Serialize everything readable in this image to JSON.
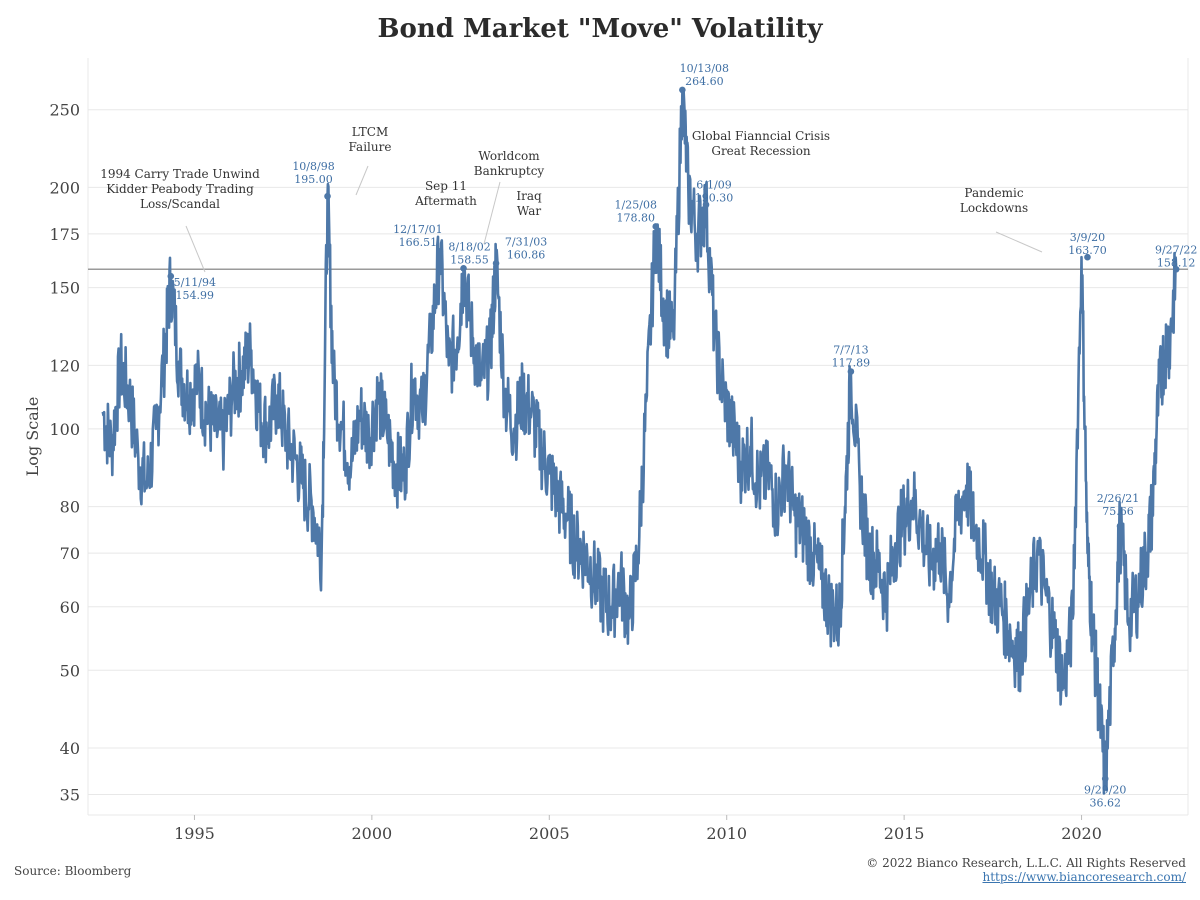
{
  "header": {
    "title": "Bond Market \"Move\" Volatility"
  },
  "footer": {
    "source": "Source: Bloomberg",
    "copyright": "© 2022 Bianco Research, L.L.C. All Rights Reserved",
    "website": "https://www.biancoresearch.com/"
  },
  "colors": {
    "series": "#4e78a8",
    "reference_line": "#9a9a9a",
    "grid": "#e8e8e8"
  },
  "chart_data": {
    "type": "line",
    "title": "Bond Market \"Move\" Volatility",
    "ylabel": "Log Scale",
    "xlabel": "",
    "y_scale": "log",
    "ylim": [
      33,
      290
    ],
    "xlim": [
      "1992-01",
      "2023-01"
    ],
    "y_ticks": [
      35,
      40,
      50,
      60,
      70,
      80,
      100,
      120,
      150,
      175,
      200,
      250
    ],
    "x_ticks": [
      "1995",
      "2000",
      "2005",
      "2010",
      "2015",
      "2020"
    ],
    "grid": true,
    "reference_line": {
      "y": 158.12
    },
    "series": [
      {
        "x": [
          "1992-06",
          "1992-09",
          "1992-12",
          "1993-03",
          "1993-06",
          "1993-09",
          "1993-12",
          "1994-03",
          "1994-05",
          "1994-08",
          "1994-11",
          "1995-02",
          "1995-05",
          "1995-08",
          "1995-11",
          "1996-02",
          "1996-05",
          "1996-08",
          "1996-11",
          "1997-02",
          "1997-05",
          "1997-08",
          "1997-11",
          "1998-02",
          "1998-05",
          "1998-08",
          "1998-10",
          "1998-12",
          "1999-03",
          "1999-06",
          "1999-09",
          "1999-12",
          "2000-03",
          "2000-06",
          "2000-09",
          "2000-12",
          "2001-03",
          "2001-06",
          "2001-09",
          "2001-12",
          "2002-03",
          "2002-06",
          "2002-08",
          "2002-11",
          "2003-02",
          "2003-05",
          "2003-07",
          "2003-10",
          "2004-01",
          "2004-04",
          "2004-07",
          "2004-10",
          "2005-01",
          "2005-04",
          "2005-07",
          "2005-10",
          "2006-01",
          "2006-04",
          "2006-07",
          "2006-10",
          "2007-01",
          "2007-04",
          "2007-07",
          "2007-10",
          "2008-01",
          "2008-04",
          "2008-07",
          "2008-10",
          "2008-12",
          "2009-03",
          "2009-06",
          "2009-09",
          "2009-12",
          "2010-03",
          "2010-06",
          "2010-09",
          "2010-12",
          "2011-03",
          "2011-06",
          "2011-09",
          "2011-12",
          "2012-03",
          "2012-06",
          "2012-09",
          "2012-12",
          "2013-03",
          "2013-05",
          "2013-07",
          "2013-10",
          "2014-01",
          "2014-04",
          "2014-07",
          "2014-10",
          "2015-01",
          "2015-04",
          "2015-07",
          "2015-10",
          "2016-01",
          "2016-04",
          "2016-07",
          "2016-10",
          "2017-01",
          "2017-04",
          "2017-07",
          "2017-10",
          "2018-01",
          "2018-04",
          "2018-07",
          "2018-10",
          "2019-01",
          "2019-04",
          "2019-07",
          "2019-10",
          "2020-01",
          "2020-03",
          "2020-05",
          "2020-07",
          "2020-09",
          "2020-12",
          "2021-02",
          "2021-05",
          "2021-08",
          "2021-11",
          "2022-01",
          "2022-03",
          "2022-05",
          "2022-07",
          "2022-09"
        ],
        "values": [
          105,
          95,
          120,
          110,
          92,
          85,
          100,
          125,
          155,
          118,
          110,
          115,
          105,
          100,
          98,
          112,
          118,
          125,
          105,
          100,
          110,
          98,
          92,
          85,
          80,
          70,
          195,
          115,
          100,
          90,
          105,
          98,
          110,
          100,
          90,
          88,
          115,
          105,
          130,
          166.51,
          120,
          130,
          158.55,
          130,
          115,
          125,
          160.86,
          110,
          100,
          110,
          105,
          95,
          88,
          82,
          78,
          72,
          70,
          66,
          62,
          60,
          65,
          58,
          70,
          110,
          178.8,
          140,
          130,
          264.6,
          200,
          175,
          190.3,
          130,
          110,
          100,
          90,
          95,
          85,
          88,
          80,
          90,
          78,
          75,
          70,
          65,
          60,
          58,
          80,
          117.89,
          85,
          70,
          68,
          62,
          72,
          78,
          82,
          75,
          68,
          72,
          62,
          78,
          85,
          75,
          70,
          62,
          60,
          55,
          52,
          60,
          70,
          62,
          55,
          48,
          58,
          163.7,
          70,
          55,
          45,
          36.62,
          55,
          75.66,
          58,
          62,
          70,
          80,
          110,
          125,
          130,
          158.12
        ]
      }
    ],
    "annotations": [
      {
        "x": "1994-05",
        "y": 154.99,
        "date": "5/11/94",
        "value": "154.99",
        "event": [
          "1994 Carry Trade Unwind",
          "Kidder Peabody Trading",
          "Loss/Scandal"
        ]
      },
      {
        "x": "1998-10",
        "y": 195.0,
        "date": "10/8/98",
        "value": "195.00",
        "event": [
          "LTCM",
          "Failure"
        ]
      },
      {
        "x": "2001-12",
        "y": 166.51,
        "date": "12/17/01",
        "value": "166.51",
        "event": [
          "Sep 11",
          "Aftermath"
        ]
      },
      {
        "x": "2002-08",
        "y": 158.55,
        "date": "8/18/02",
        "value": "158.55",
        "event": [
          "Worldcom",
          "Bankruptcy"
        ]
      },
      {
        "x": "2003-07",
        "y": 160.86,
        "date": "7/31/03",
        "value": "160.86",
        "event": [
          "Iraq",
          "War"
        ]
      },
      {
        "x": "2008-01",
        "y": 178.8,
        "date": "1/25/08",
        "value": "178.80",
        "event": []
      },
      {
        "x": "2008-10",
        "y": 264.6,
        "date": "10/13/08",
        "value": "264.60",
        "event": [
          "Global Fianncial Crisis",
          "Great Recession"
        ]
      },
      {
        "x": "2009-06",
        "y": 190.3,
        "date": "6/1/09",
        "value": "190.30",
        "event": []
      },
      {
        "x": "2013-07",
        "y": 117.89,
        "date": "7/7/13",
        "value": "117.89",
        "event": []
      },
      {
        "x": "2020-03",
        "y": 163.7,
        "date": "3/9/20",
        "value": "163.70",
        "event": [
          "Pandemic",
          "Lockdowns"
        ]
      },
      {
        "x": "2020-09",
        "y": 36.62,
        "date": "9/29/20",
        "value": "36.62",
        "event": []
      },
      {
        "x": "2021-02",
        "y": 75.66,
        "date": "2/26/21",
        "value": "75.66",
        "event": []
      },
      {
        "x": "2022-09",
        "y": 158.12,
        "date": "9/27/22",
        "value": "158.12",
        "event": []
      }
    ]
  }
}
